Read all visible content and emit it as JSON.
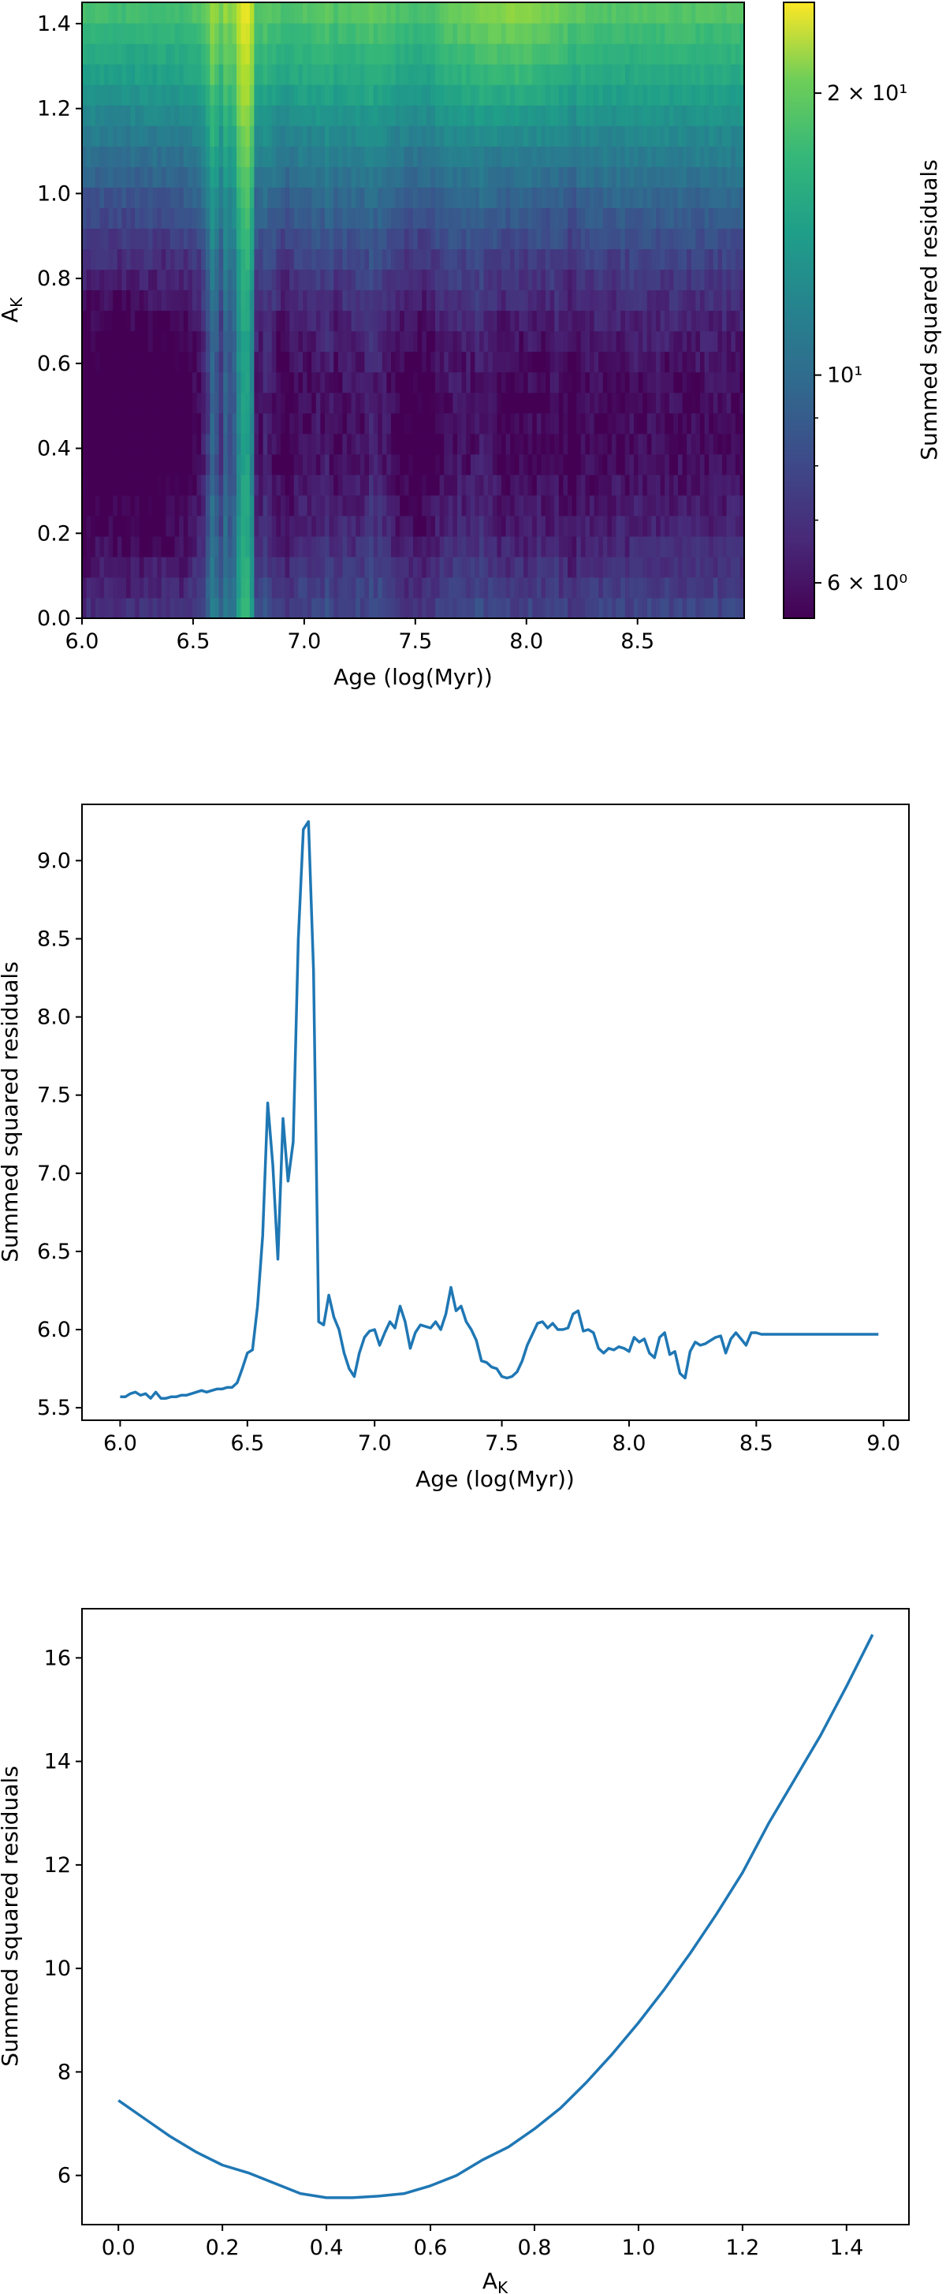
{
  "chart_data": [
    {
      "type": "heatmap",
      "xlabel": "Age (log(Myr))",
      "ylabel": "A_K",
      "xlim": [
        6.0,
        8.98
      ],
      "ylim": [
        0.0,
        1.45
      ],
      "xticks": [
        "6.0",
        "6.5",
        "7.0",
        "7.5",
        "8.0",
        "8.5"
      ],
      "yticks": [
        "0.0",
        "0.2",
        "0.4",
        "0.6",
        "0.8",
        "1.0",
        "1.2",
        "1.4"
      ],
      "colormap": "viridis",
      "color_scale": "log",
      "colorbar_label": "Summed squared residuals",
      "colorbar_range": [
        5.5,
        25.0
      ],
      "colorbar_ticks": [
        {
          "value": 6,
          "label": "6 × 10⁰"
        },
        {
          "value": 10,
          "label": "10¹"
        },
        {
          "value": 20,
          "label": "2 × 10¹"
        }
      ],
      "ak_grid": [
        0.0,
        0.05,
        0.1,
        0.15,
        0.2,
        0.25,
        0.3,
        0.35,
        0.4,
        0.45,
        0.5,
        0.55,
        0.6,
        0.65,
        0.7,
        0.75,
        0.8,
        0.85,
        0.9,
        0.95,
        1.0,
        1.05,
        1.1,
        1.15,
        1.2,
        1.25,
        1.3,
        1.35,
        1.4,
        1.45
      ],
      "ak_baseline": [
        7.4,
        7.05,
        6.75,
        6.45,
        6.2,
        6.05,
        5.85,
        5.65,
        5.6,
        5.6,
        5.62,
        5.65,
        5.8,
        6.0,
        6.25,
        6.55,
        6.9,
        7.3,
        7.8,
        8.35,
        8.9,
        9.6,
        10.3,
        11.0,
        11.8,
        12.7,
        13.6,
        14.4,
        15.3,
        16.4
      ],
      "age_profile_ref": 5.9,
      "notes_visible": "vertical bright band at ages 6.6–6.85; diagonal bright wedge toward upper right"
    },
    {
      "type": "line",
      "xlabel": "Age (log(Myr))",
      "ylabel": "Summed squared residuals",
      "xlim": [
        5.85,
        9.1
      ],
      "ylim": [
        5.42,
        9.36
      ],
      "xticks": [
        "6.0",
        "6.5",
        "7.0",
        "7.5",
        "8.0",
        "8.5",
        "9.0"
      ],
      "yticks": [
        "5.5",
        "6.0",
        "6.5",
        "7.0",
        "7.5",
        "8.0",
        "8.5",
        "9.0"
      ],
      "color": "#1f77b4",
      "x": [
        6.0,
        6.02,
        6.04,
        6.06,
        6.08,
        6.1,
        6.12,
        6.14,
        6.16,
        6.18,
        6.2,
        6.22,
        6.24,
        6.26,
        6.28,
        6.3,
        6.32,
        6.34,
        6.36,
        6.38,
        6.4,
        6.42,
        6.44,
        6.46,
        6.48,
        6.5,
        6.52,
        6.54,
        6.56,
        6.58,
        6.6,
        6.62,
        6.64,
        6.66,
        6.68,
        6.7,
        6.72,
        6.74,
        6.76,
        6.78,
        6.8,
        6.82,
        6.84,
        6.86,
        6.88,
        6.9,
        6.92,
        6.94,
        6.96,
        6.98,
        7.0,
        7.02,
        7.04,
        7.06,
        7.08,
        7.1,
        7.12,
        7.14,
        7.16,
        7.18,
        7.2,
        7.22,
        7.24,
        7.26,
        7.28,
        7.3,
        7.32,
        7.34,
        7.36,
        7.38,
        7.4,
        7.42,
        7.44,
        7.46,
        7.48,
        7.5,
        7.52,
        7.54,
        7.56,
        7.58,
        7.6,
        7.62,
        7.64,
        7.66,
        7.68,
        7.7,
        7.72,
        7.74,
        7.76,
        7.78,
        7.8,
        7.82,
        7.84,
        7.86,
        7.88,
        7.9,
        7.92,
        7.94,
        7.96,
        7.98,
        8.0,
        8.02,
        8.04,
        8.06,
        8.08,
        8.1,
        8.12,
        8.14,
        8.16,
        8.18,
        8.2,
        8.22,
        8.24,
        8.26,
        8.28,
        8.3,
        8.32,
        8.34,
        8.36,
        8.38,
        8.4,
        8.42,
        8.44,
        8.46,
        8.48,
        8.5,
        8.52,
        8.54,
        8.56,
        8.58,
        8.6,
        8.62,
        8.64,
        8.66,
        8.68,
        8.7,
        8.72,
        8.74,
        8.76,
        8.78,
        8.8,
        8.82,
        8.84,
        8.86,
        8.88,
        8.9,
        8.92,
        8.94,
        8.96,
        8.98
      ],
      "y": [
        5.57,
        5.57,
        5.59,
        5.6,
        5.58,
        5.59,
        5.56,
        5.6,
        5.56,
        5.56,
        5.57,
        5.57,
        5.58,
        5.58,
        5.59,
        5.6,
        5.61,
        5.6,
        5.61,
        5.62,
        5.62,
        5.63,
        5.63,
        5.66,
        5.75,
        5.85,
        5.87,
        6.15,
        6.6,
        7.45,
        7.05,
        6.45,
        7.35,
        6.95,
        7.2,
        8.5,
        9.2,
        9.25,
        8.3,
        6.05,
        6.03,
        6.22,
        6.08,
        6.0,
        5.85,
        5.75,
        5.7,
        5.85,
        5.95,
        5.99,
        6.0,
        5.9,
        5.98,
        6.05,
        6.01,
        6.15,
        6.05,
        5.88,
        5.98,
        6.03,
        6.02,
        6.01,
        6.05,
        6.0,
        6.1,
        6.27,
        6.12,
        6.15,
        6.05,
        6.0,
        5.93,
        5.8,
        5.79,
        5.76,
        5.75,
        5.7,
        5.69,
        5.7,
        5.73,
        5.8,
        5.9,
        5.97,
        6.04,
        6.05,
        6.01,
        6.04,
        6.0,
        6.0,
        6.01,
        6.1,
        6.12,
        5.99,
        6.0,
        5.98,
        5.88,
        5.85,
        5.88,
        5.87,
        5.89,
        5.88,
        5.86,
        5.95,
        5.92,
        5.94,
        5.85,
        5.82,
        5.95,
        5.98,
        5.84,
        5.86,
        5.72,
        5.69,
        5.86,
        5.92,
        5.9,
        5.91,
        5.93,
        5.95,
        5.96,
        5.85,
        5.94,
        5.98,
        5.94,
        5.9,
        5.98,
        5.98,
        5.97,
        5.97,
        5.97,
        5.97,
        5.97,
        5.97,
        5.97,
        5.97,
        5.97,
        5.97,
        5.97,
        5.97,
        5.97,
        5.97,
        5.97,
        5.97,
        5.97,
        5.97,
        5.97,
        5.97,
        5.97,
        5.97,
        5.97,
        5.97
      ]
    },
    {
      "type": "line",
      "xlabel": "A_K",
      "ylabel": "Summed squared residuals",
      "xlim": [
        -0.07,
        1.52
      ],
      "ylim": [
        5.05,
        16.95
      ],
      "xticks": [
        "0.0",
        "0.2",
        "0.4",
        "0.6",
        "0.8",
        "1.0",
        "1.2",
        "1.4"
      ],
      "yticks": [
        "6",
        "8",
        "10",
        "12",
        "14",
        "16"
      ],
      "color": "#1f77b4",
      "x": [
        0.0,
        0.05,
        0.1,
        0.15,
        0.2,
        0.25,
        0.3,
        0.35,
        0.4,
        0.45,
        0.5,
        0.55,
        0.6,
        0.65,
        0.7,
        0.75,
        0.8,
        0.85,
        0.9,
        0.95,
        1.0,
        1.05,
        1.1,
        1.15,
        1.2,
        1.25,
        1.3,
        1.35,
        1.4,
        1.45
      ],
      "y": [
        7.45,
        7.1,
        6.75,
        6.45,
        6.2,
        6.05,
        5.85,
        5.65,
        5.57,
        5.57,
        5.6,
        5.65,
        5.8,
        6.0,
        6.3,
        6.55,
        6.9,
        7.3,
        7.8,
        8.35,
        8.95,
        9.6,
        10.3,
        11.05,
        11.85,
        12.8,
        13.65,
        14.5,
        15.45,
        16.45
      ]
    }
  ]
}
